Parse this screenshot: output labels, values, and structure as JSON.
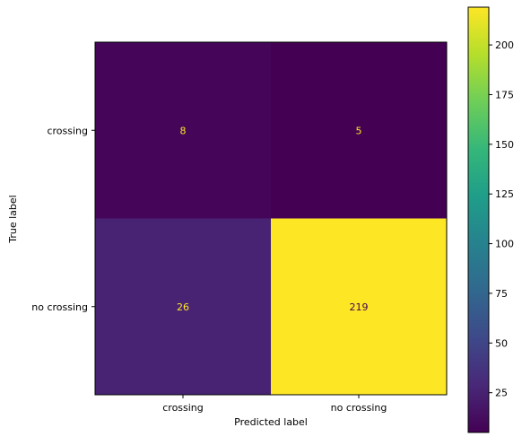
{
  "chart_data": {
    "type": "heatmap",
    "title": "",
    "xlabel": "Predicted label",
    "ylabel": "True label",
    "x_categories": [
      "crossing",
      "no crossing"
    ],
    "y_categories": [
      "crossing",
      "no crossing"
    ],
    "values": [
      [
        8,
        5
      ],
      [
        26,
        219
      ]
    ],
    "colormap": "viridis",
    "colorbar": {
      "ticks": [
        25,
        50,
        75,
        100,
        125,
        150,
        175,
        200
      ],
      "range": [
        5,
        219
      ]
    },
    "grid": false
  },
  "colors": {
    "viridis_low": "#440154",
    "viridis_high": "#fde725",
    "text_on_dark": "#fde725",
    "text_on_light": "#440154"
  }
}
